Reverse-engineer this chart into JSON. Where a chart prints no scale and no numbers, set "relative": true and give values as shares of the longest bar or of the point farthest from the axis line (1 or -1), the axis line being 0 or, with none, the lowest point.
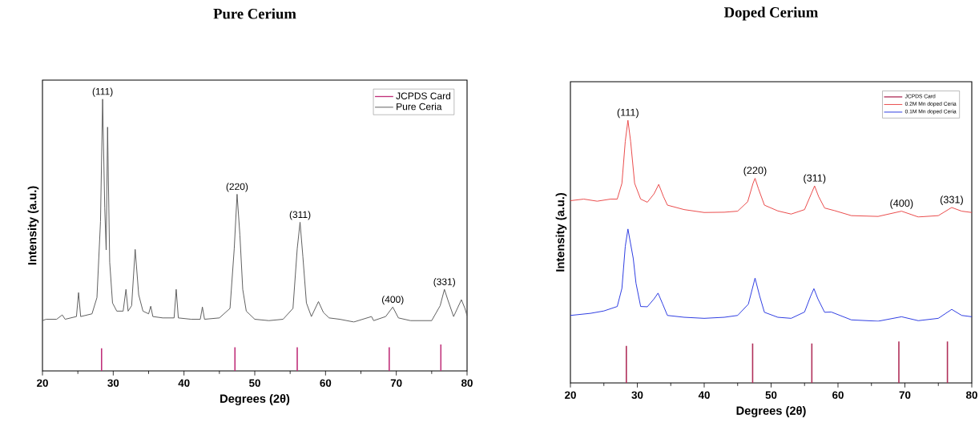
{
  "chart_data": [
    {
      "type": "line",
      "title": "Pure Cerium",
      "xlabel": "Degrees (2θ)",
      "ylabel": "Intensity (a.u.)",
      "relative": true,
      "xlim": [
        20,
        80
      ],
      "xticks": [
        20,
        30,
        40,
        50,
        60,
        70,
        80
      ],
      "legend": "top right",
      "annotations": [
        {
          "text": "(111)",
          "x": 28.5,
          "y": 1.0
        },
        {
          "text": "(220)",
          "x": 47.5,
          "y": 0.65
        },
        {
          "text": "(311)",
          "x": 56.4,
          "y": 0.547
        },
        {
          "text": "(400)",
          "x": 69.5,
          "y": 0.235
        },
        {
          "text": "(331)",
          "x": 76.8,
          "y": 0.3
        }
      ],
      "series": [
        {
          "name": "JCPDS Card",
          "type": "bar",
          "color": "#c0307a",
          "x": [
            28.35,
            47.2,
            56.0,
            69.0,
            76.3
          ],
          "values": [
            0.083,
            0.087,
            0.087,
            0.087,
            0.097
          ]
        },
        {
          "name": "Pure Ceria",
          "color": "#555555",
          "x": [
            20,
            20.5,
            22,
            22.8,
            23.2,
            24.8,
            25.1,
            25.4,
            27,
            27.7,
            28.2,
            28.5,
            28.8,
            29.0,
            29.2,
            29.5,
            29.9,
            30.5,
            31.4,
            31.8,
            32.1,
            32.6,
            33.1,
            33.6,
            34.2,
            35.0,
            35.3,
            35.6,
            37,
            38.6,
            38.9,
            39.2,
            41,
            42.3,
            42.6,
            42.9,
            45,
            46.5,
            47.1,
            47.5,
            47.9,
            48.3,
            48.8,
            50,
            52,
            54,
            55.4,
            56.0,
            56.4,
            56.8,
            57.3,
            58,
            59,
            59.7,
            60.5,
            62,
            64,
            66.5,
            66.8,
            68.5,
            69.5,
            70.3,
            72,
            75,
            76.2,
            76.8,
            77.3,
            78.1,
            79.2,
            79.7,
            80
          ],
          "values": [
            0.185,
            0.19,
            0.19,
            0.206,
            0.19,
            0.2,
            0.288,
            0.2,
            0.21,
            0.27,
            0.55,
            1.0,
            0.6,
            0.445,
            0.897,
            0.4,
            0.25,
            0.22,
            0.22,
            0.3,
            0.22,
            0.24,
            0.447,
            0.28,
            0.22,
            0.21,
            0.238,
            0.2,
            0.195,
            0.195,
            0.3,
            0.195,
            0.19,
            0.19,
            0.235,
            0.19,
            0.195,
            0.23,
            0.45,
            0.65,
            0.5,
            0.3,
            0.22,
            0.19,
            0.185,
            0.19,
            0.23,
            0.45,
            0.547,
            0.42,
            0.25,
            0.2,
            0.255,
            0.215,
            0.195,
            0.19,
            0.18,
            0.2,
            0.185,
            0.2,
            0.235,
            0.195,
            0.185,
            0.185,
            0.24,
            0.3,
            0.26,
            0.2,
            0.262,
            0.23,
            0.203
          ]
        }
      ]
    },
    {
      "type": "line",
      "title": "Doped Cerium",
      "xlabel": "Degrees (2θ)",
      "ylabel": "Intensity (a.u.)",
      "relative": true,
      "xlim": [
        20,
        80
      ],
      "xticks": [
        20,
        30,
        40,
        50,
        60,
        70,
        80
      ],
      "legend": "top right",
      "annotations": [
        {
          "text": "(111)",
          "x": 28.6,
          "y": 1.0
        },
        {
          "text": "(220)",
          "x": 47.6,
          "y": 0.779
        },
        {
          "text": "(311)",
          "x": 56.5,
          "y": 0.75
        },
        {
          "text": "(400)",
          "x": 69.5,
          "y": 0.654
        },
        {
          "text": "(331)",
          "x": 77,
          "y": 0.668
        }
      ],
      "series": [
        {
          "name": "JCPDS Card",
          "type": "bar",
          "color": "#b0305a",
          "x": [
            28.36,
            47.24,
            56.09,
            69.1,
            76.36
          ],
          "values": [
            0.141,
            0.15,
            0.15,
            0.158,
            0.158
          ]
        },
        {
          "name": "0.2M Mn doped Ceria",
          "color": "#e84040",
          "x": [
            20,
            22,
            24,
            26,
            27,
            27.7,
            28.2,
            28.6,
            29.0,
            29.6,
            30.5,
            31.5,
            32.5,
            33.2,
            33.9,
            34.5,
            37,
            40,
            43,
            45,
            46.5,
            47.3,
            47.6,
            48.1,
            49,
            51,
            53,
            55,
            56,
            56.5,
            57.1,
            58,
            59.5,
            62,
            66,
            69.5,
            72,
            75,
            77,
            78.5,
            80
          ],
          "values": [
            0.694,
            0.7,
            0.692,
            0.7,
            0.7,
            0.76,
            0.92,
            1.0,
            0.92,
            0.76,
            0.7,
            0.688,
            0.72,
            0.756,
            0.71,
            0.677,
            0.66,
            0.649,
            0.65,
            0.654,
            0.69,
            0.76,
            0.779,
            0.74,
            0.677,
            0.655,
            0.643,
            0.66,
            0.72,
            0.75,
            0.71,
            0.666,
            0.656,
            0.637,
            0.634,
            0.654,
            0.632,
            0.637,
            0.668,
            0.654,
            0.649
          ]
        },
        {
          "name": "0.1M Mn doped Ceria",
          "color": "#2030e0",
          "x": [
            20,
            23,
            25,
            27,
            27.7,
            28.2,
            28.6,
            29.4,
            29.8,
            30.5,
            31.5,
            32.5,
            33.1,
            33.8,
            34.5,
            37,
            40,
            43,
            45,
            46.6,
            47.6,
            48.3,
            49,
            51,
            53,
            55,
            55.9,
            56.4,
            57,
            58,
            59,
            62,
            66,
            69.5,
            72,
            75,
            77,
            78.5,
            80
          ],
          "values": [
            0.257,
            0.265,
            0.274,
            0.291,
            0.36,
            0.52,
            0.586,
            0.473,
            0.38,
            0.291,
            0.29,
            0.32,
            0.342,
            0.3,
            0.257,
            0.25,
            0.246,
            0.25,
            0.257,
            0.3,
            0.399,
            0.33,
            0.269,
            0.25,
            0.246,
            0.27,
            0.33,
            0.359,
            0.32,
            0.269,
            0.27,
            0.24,
            0.235,
            0.252,
            0.237,
            0.246,
            0.28,
            0.257,
            0.252
          ]
        }
      ]
    }
  ]
}
